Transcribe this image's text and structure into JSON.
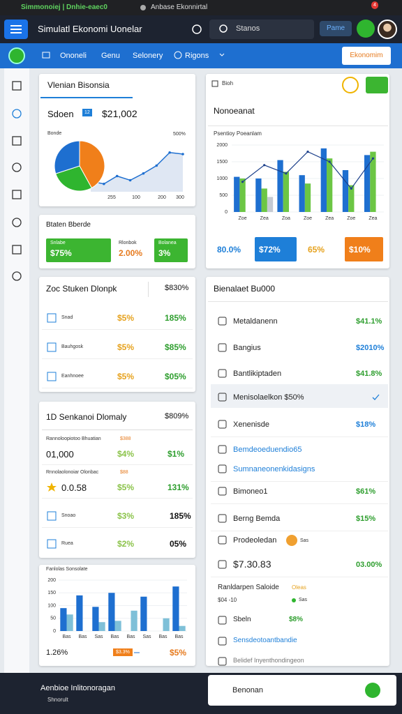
{
  "browser": {
    "tab_title": "Simmonoiej | Dnhie-eaec0",
    "tab2": "Anbase Ekonnirtal",
    "badge": "4"
  },
  "header": {
    "title": "Simulatl Ekonomi Uonelar",
    "search": "Stanos",
    "button": "Pame"
  },
  "nav": {
    "items": [
      "Ononeli",
      "Genu",
      "Selonery",
      "Rigons"
    ],
    "action": "Ekonomim"
  },
  "overview": {
    "title": "Vlenian Bisonsia",
    "label": "Sdoen",
    "badge": "12",
    "value": "$21,002",
    "chart_title": "Bonde",
    "corner_label": "500%",
    "pie": {
      "values": [
        42,
        28,
        30
      ],
      "colors": [
        "#f07f1a",
        "#2fb52f",
        "#1e6fd0"
      ]
    },
    "line": {
      "values": [
        20,
        15,
        30,
        22,
        35,
        50,
        75,
        72
      ],
      "ylim": [
        0,
        100
      ],
      "color": "#1e6fd0"
    },
    "x_labels": [
      "255",
      "100",
      "200",
      "300"
    ]
  },
  "status": {
    "title": "Btaten Bberde",
    "tiles": [
      {
        "label": "Snlabe",
        "value": "$75%"
      },
      {
        "label": "Rlonbok",
        "value": "2.00%"
      },
      {
        "label": "Bolanea",
        "value": "3%"
      }
    ]
  },
  "stocks": {
    "title": "Zoc Stuken Dlonpk",
    "total": "$830%",
    "rows": [
      {
        "label": "Snad",
        "a": "$5%",
        "b": "185%"
      },
      {
        "label": "Bauhgosk",
        "a": "$5%",
        "b": "$85%"
      },
      {
        "label": "Eanhnoee",
        "a": "$5%",
        "b": "$05%"
      }
    ]
  },
  "summary": {
    "title": "1D Senkanoi Dlomaly",
    "total": "$809%",
    "groups": [
      {
        "heading": "Rannoloopiotoo Bhuatian",
        "tag": "$388",
        "label": "01,000",
        "a": "$4%",
        "b": "$1%"
      },
      {
        "heading": "Rnnolaolonoiar Olonbac",
        "tag": "$88",
        "label": "0.0.58",
        "a": "$5%",
        "b": "131%"
      }
    ],
    "rows": [
      {
        "label": "Snoao",
        "a": "$3%",
        "b": "185%"
      },
      {
        "label": "Ruea",
        "a": "$2%",
        "b": "05%"
      }
    ]
  },
  "mini_chart": {
    "type": "bar",
    "title": "Fanlolas Sonsolate",
    "categories": [
      "Bas",
      "Bas",
      "Sas",
      "Bas",
      "Bas",
      "Sas",
      "Bas",
      "Bas"
    ],
    "series": [
      {
        "color": "#1e6fd0",
        "values": [
          90,
          140,
          95,
          150,
          null,
          135,
          null,
          175
        ]
      },
      {
        "color": "#7fc0d8",
        "values": [
          65,
          null,
          35,
          40,
          80,
          null,
          50,
          20
        ]
      }
    ],
    "ylim": [
      0,
      200
    ],
    "yticks": [
      0,
      50,
      100,
      150,
      200
    ],
    "footer_left": "1.26%",
    "footer_tag": "$3.3%",
    "footer_right": "$5%"
  },
  "right_chart": {
    "type": "bar",
    "search": "Bioh",
    "title": "Nonoeanat",
    "chart_title": "Psentioy Poeanlam",
    "categories": [
      "Zoe",
      "Zea",
      "Zoa",
      "Zoe",
      "Zea",
      "Zoe",
      "Zea"
    ],
    "series": [
      {
        "type": "bar",
        "color": "#1e6fd0",
        "values": [
          1050,
          1000,
          1550,
          1100,
          1900,
          1250,
          1700
        ]
      },
      {
        "type": "bar",
        "color": "#6cc644",
        "values": [
          1000,
          700,
          1200,
          850,
          1600,
          800,
          1800
        ]
      },
      {
        "type": "bar",
        "color": "#c5cad3",
        "values": [
          null,
          450,
          null,
          null,
          null,
          null,
          null
        ]
      },
      {
        "type": "line",
        "color": "#1b3f8a",
        "values": [
          900,
          1400,
          1150,
          1800,
          1500,
          700,
          1600
        ]
      }
    ],
    "ylim": [
      0,
      2000
    ],
    "yticks": [
      0,
      500,
      1000,
      1500,
      2000
    ],
    "grid": true,
    "tiles": [
      "80.0%",
      "$72%",
      "65%",
      "$10%"
    ]
  },
  "list": {
    "title": "Bienalaet Bu000",
    "selected_index": 3,
    "items": [
      {
        "text": "Metaldanenn",
        "value": "$41.1%",
        "tone": "green"
      },
      {
        "text": "Bangius",
        "value": "$2010%",
        "tone": "blue"
      },
      {
        "text": "Bantlikiptaden",
        "value": "$41.8%",
        "tone": "green"
      },
      {
        "text": "Menisolaelkon $50%"
      },
      {
        "text": "Xenenisde",
        "value": "$18%",
        "tone": "blue"
      },
      {
        "text": "Bemdeoeduendio65",
        "tone": "link"
      },
      {
        "text": "Sumnaneonenkidasigns",
        "tone": "link"
      },
      {
        "text": "Bimoneo1",
        "value": "$61%",
        "tone": "green"
      },
      {
        "text": "Berng Bemda",
        "value": "$15%",
        "tone": "green"
      },
      {
        "text": "Prodeoledan",
        "badge": "Sas"
      },
      {
        "text": "$7.30.83",
        "value": "03.00%",
        "tone": "green"
      }
    ],
    "section": {
      "title": "Ranldarpen Saloide",
      "tag": "Oleas",
      "meta": "$04 -10",
      "meta_tag": "Sas",
      "rows": [
        {
          "text": "Sbeln",
          "value": "$8%",
          "tone": "green"
        },
        {
          "text": "Sensdeotoantbandie",
          "tone": "link"
        },
        {
          "text": "Belidef Inyenthondingeon",
          "tone": "muted"
        }
      ]
    }
  },
  "footer": {
    "title": "Aenbioe Inlitonoragan",
    "subtitle": "Shnorult",
    "toast": "Benonan"
  }
}
